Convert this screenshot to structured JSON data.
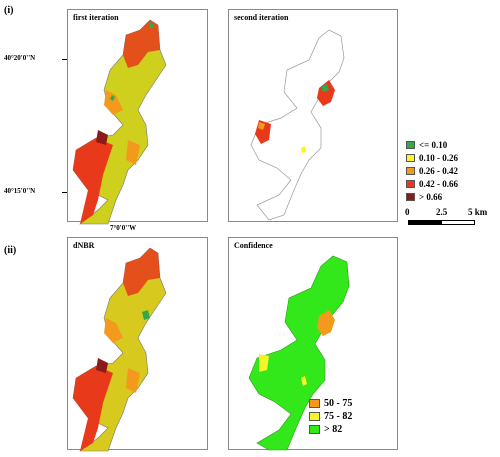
{
  "row_labels": {
    "top": "(i)",
    "bottom": "(ii)"
  },
  "panels": {
    "first": {
      "title": "first iteration"
    },
    "second": {
      "title": "second iteration"
    },
    "dnbr": {
      "title": "dNBR"
    },
    "confidence": {
      "title": "Confidence"
    }
  },
  "coordinates": {
    "lat_north": "40°20'0''N",
    "lat_south": "40°15'0''N",
    "lon": "7°0'0''W"
  },
  "burn_legend": [
    {
      "label": "<= 0.10",
      "color": "#2eaa4a"
    },
    {
      "label": "0.10 - 0.26",
      "color": "#f5f52a"
    },
    {
      "label": "0.26 - 0.42",
      "color": "#f39a1c"
    },
    {
      "label": "0.42 - 0.66",
      "color": "#e8391b"
    },
    {
      "label": "> 0.66",
      "color": "#8b1a1a"
    }
  ],
  "scale_bar": {
    "labels": [
      "0",
      "2.5",
      "5 km"
    ]
  },
  "confidence_legend": [
    {
      "label": "50 - 75",
      "color": "#f39a1c"
    },
    {
      "label": "75 - 82",
      "color": "#f5f52a"
    },
    {
      "label": "> 82",
      "color": "#33e81a"
    }
  ]
}
